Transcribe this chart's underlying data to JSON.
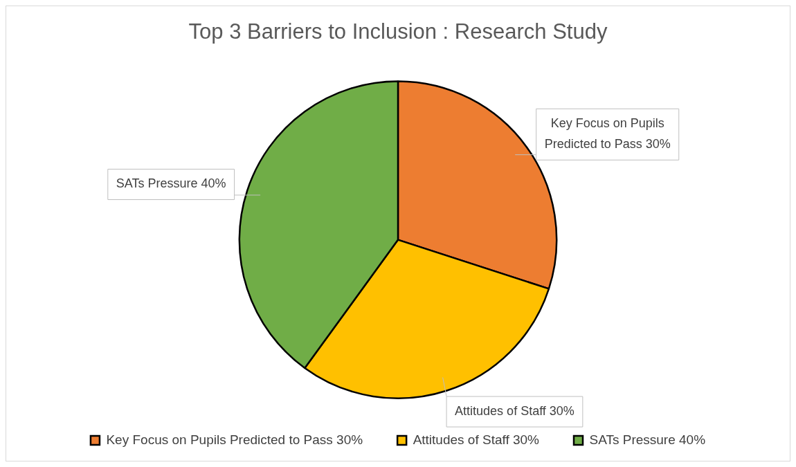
{
  "chart_data": {
    "type": "pie",
    "title": "Top 3 Barriers to Inclusion : Research Study",
    "categories": [
      "Key Focus on Pupils Predicted to Pass 30%",
      "Attitudes of Staff 30%",
      "SATs Pressure 40%"
    ],
    "values": [
      30,
      30,
      40
    ],
    "colors": [
      "#ed7d31",
      "#ffc000",
      "#70ad47"
    ],
    "legend": "bottom"
  }
}
